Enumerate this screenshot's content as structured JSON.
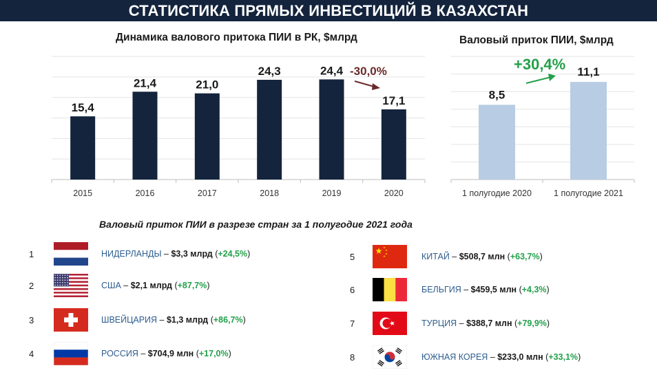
{
  "header": {
    "title": "СТАТИСТИКА ПРЯМЫХ ИНВЕСТИЦИЙ В КАЗАХСТАН"
  },
  "colors": {
    "header_bg": "#14243d",
    "bar_dark": "#14243d",
    "bar_light": "#b8cde3",
    "green": "#22a04a",
    "maroon": "#6b2a2a"
  },
  "chart_data": [
    {
      "type": "bar",
      "title": "Динамика валового притока ПИИ в РК, $млрд",
      "categories": [
        "2015",
        "2016",
        "2017",
        "2018",
        "2019",
        "2020"
      ],
      "values": [
        15.4,
        21.4,
        21.0,
        24.3,
        24.4,
        17.1
      ],
      "value_labels": [
        "15,4",
        "21,4",
        "21,0",
        "24,3",
        "24,4",
        "17,1"
      ],
      "ylim": [
        0,
        30
      ],
      "grid": true,
      "annotation": {
        "text": "-30,0%",
        "icon": "arrow-down-right-icon"
      }
    },
    {
      "type": "bar",
      "title": "Валовый приток ПИИ, $млрд",
      "categories": [
        "1 полугодие 2020",
        "1 полугодие 2021"
      ],
      "values": [
        8.5,
        11.1
      ],
      "value_labels": [
        "8,5",
        "11,1"
      ],
      "ylim": [
        0,
        14
      ],
      "grid": true,
      "annotation": {
        "text": "+30,4%",
        "icon": "arrow-up-right-icon"
      }
    }
  ],
  "countries_title": "Валовый приток ПИИ в разрезе стран за 1 полугодие 2021 года",
  "countries": [
    {
      "rank": "1",
      "name": "НИДЕРЛАНДЫ",
      "value": "$3,3 млрд",
      "pct": "+24,5%",
      "flag": "netherlands-flag-icon"
    },
    {
      "rank": "2",
      "name": "США",
      "value": "$2,1 млрд",
      "pct": "+87,7%",
      "flag": "usa-flag-icon"
    },
    {
      "rank": "3",
      "name": "ШВЕЙЦАРИЯ",
      "value": "$1,3 млрд",
      "pct": "+86,7%",
      "flag": "switzerland-flag-icon"
    },
    {
      "rank": "4",
      "name": "РОССИЯ",
      "value": "$704,9 млн",
      "pct": "+17,0%",
      "flag": "russia-flag-icon"
    },
    {
      "rank": "5",
      "name": "КИТАЙ",
      "value": "$508,7 млн",
      "pct": "+63,7%",
      "flag": "china-flag-icon"
    },
    {
      "rank": "6",
      "name": "БЕЛЬГИЯ",
      "value": "$459,5 млн",
      "pct": "+4,3%",
      "flag": "belgium-flag-icon"
    },
    {
      "rank": "7",
      "name": "ТУРЦИЯ",
      "value": "$388,7 млн",
      "pct": "+79,9%",
      "flag": "turkey-flag-icon"
    },
    {
      "rank": "8",
      "name": "ЮЖНАЯ КОРЕЯ",
      "value": "$233,0 млн",
      "pct": "+33,1%",
      "flag": "south-korea-flag-icon"
    }
  ]
}
